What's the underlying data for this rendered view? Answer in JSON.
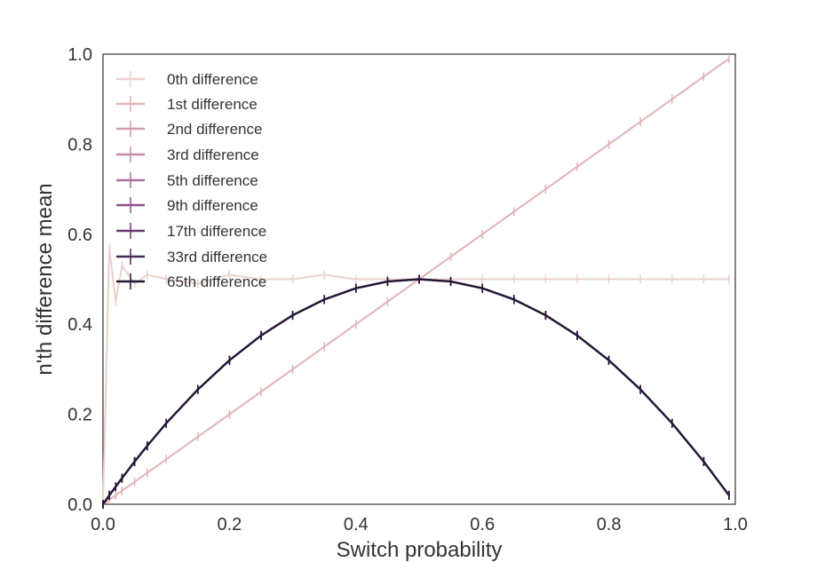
{
  "chart_data": {
    "type": "line",
    "title": "",
    "xlabel": "Switch probability",
    "ylabel": "n'th difference mean",
    "xlim": [
      0.0,
      1.0
    ],
    "ylim": [
      0.0,
      1.0
    ],
    "xticks": [
      "0.0",
      "0.2",
      "0.4",
      "0.6",
      "0.8",
      "1.0"
    ],
    "yticks": [
      "0.0",
      "0.2",
      "0.4",
      "0.6",
      "0.8",
      "1.0"
    ],
    "grid": false,
    "legend_position": "top-left",
    "x": [
      0.0,
      0.01,
      0.02,
      0.03,
      0.05,
      0.07,
      0.1,
      0.15,
      0.2,
      0.25,
      0.3,
      0.35,
      0.4,
      0.45,
      0.5,
      0.55,
      0.6,
      0.65,
      0.7,
      0.75,
      0.8,
      0.85,
      0.9,
      0.95,
      0.99
    ],
    "series": [
      {
        "name": "0th difference",
        "color": "#ead2cc",
        "values": [
          0.0,
          0.57,
          0.45,
          0.53,
          0.49,
          0.51,
          0.5,
          0.49,
          0.51,
          0.5,
          0.5,
          0.51,
          0.5,
          0.5,
          0.5,
          0.5,
          0.5,
          0.5,
          0.5,
          0.5,
          0.5,
          0.5,
          0.5,
          0.5,
          0.5
        ]
      },
      {
        "name": "1st difference",
        "color": "#e0b4b6",
        "values": [
          0.0,
          0.01,
          0.02,
          0.03,
          0.05,
          0.07,
          0.1,
          0.15,
          0.2,
          0.25,
          0.3,
          0.35,
          0.4,
          0.45,
          0.5,
          0.55,
          0.6,
          0.65,
          0.7,
          0.75,
          0.8,
          0.85,
          0.9,
          0.95,
          0.99
        ]
      },
      {
        "name": "2nd difference",
        "color": "#d19eb0",
        "values": [
          0.0,
          0.02,
          0.039,
          0.058,
          0.095,
          0.13,
          0.18,
          0.255,
          0.32,
          0.375,
          0.42,
          0.455,
          0.48,
          0.495,
          0.5,
          0.495,
          0.48,
          0.455,
          0.42,
          0.375,
          0.32,
          0.255,
          0.18,
          0.095,
          0.02
        ]
      },
      {
        "name": "3rd difference",
        "color": "#c389a8",
        "values": [
          0.0,
          0.02,
          0.039,
          0.058,
          0.095,
          0.13,
          0.18,
          0.255,
          0.32,
          0.375,
          0.42,
          0.455,
          0.48,
          0.495,
          0.5,
          0.495,
          0.48,
          0.455,
          0.42,
          0.375,
          0.32,
          0.255,
          0.18,
          0.095,
          0.02
        ]
      },
      {
        "name": "5th difference",
        "color": "#ad6f9c",
        "values": [
          0.0,
          0.02,
          0.039,
          0.058,
          0.095,
          0.13,
          0.18,
          0.255,
          0.32,
          0.375,
          0.42,
          0.455,
          0.48,
          0.495,
          0.5,
          0.495,
          0.48,
          0.455,
          0.42,
          0.375,
          0.32,
          0.255,
          0.18,
          0.095,
          0.02
        ]
      },
      {
        "name": "9th difference",
        "color": "#8d528a",
        "values": [
          0.0,
          0.02,
          0.039,
          0.058,
          0.095,
          0.13,
          0.18,
          0.255,
          0.32,
          0.375,
          0.42,
          0.455,
          0.48,
          0.495,
          0.5,
          0.495,
          0.48,
          0.455,
          0.42,
          0.375,
          0.32,
          0.255,
          0.18,
          0.095,
          0.02
        ]
      },
      {
        "name": "17th difference",
        "color": "#693a70",
        "values": [
          0.0,
          0.02,
          0.039,
          0.058,
          0.095,
          0.13,
          0.18,
          0.255,
          0.32,
          0.375,
          0.42,
          0.455,
          0.48,
          0.495,
          0.5,
          0.495,
          0.48,
          0.455,
          0.42,
          0.375,
          0.32,
          0.255,
          0.18,
          0.095,
          0.02
        ]
      },
      {
        "name": "33rd difference",
        "color": "#452853",
        "values": [
          0.0,
          0.02,
          0.039,
          0.058,
          0.095,
          0.13,
          0.18,
          0.255,
          0.32,
          0.375,
          0.42,
          0.455,
          0.48,
          0.495,
          0.5,
          0.495,
          0.48,
          0.455,
          0.42,
          0.375,
          0.32,
          0.255,
          0.18,
          0.095,
          0.02
        ]
      },
      {
        "name": "65th difference",
        "color": "#251734",
        "values": [
          0.0,
          0.02,
          0.039,
          0.058,
          0.095,
          0.13,
          0.18,
          0.255,
          0.32,
          0.375,
          0.42,
          0.455,
          0.48,
          0.495,
          0.5,
          0.495,
          0.48,
          0.455,
          0.42,
          0.375,
          0.32,
          0.255,
          0.18,
          0.095,
          0.02
        ]
      }
    ]
  }
}
